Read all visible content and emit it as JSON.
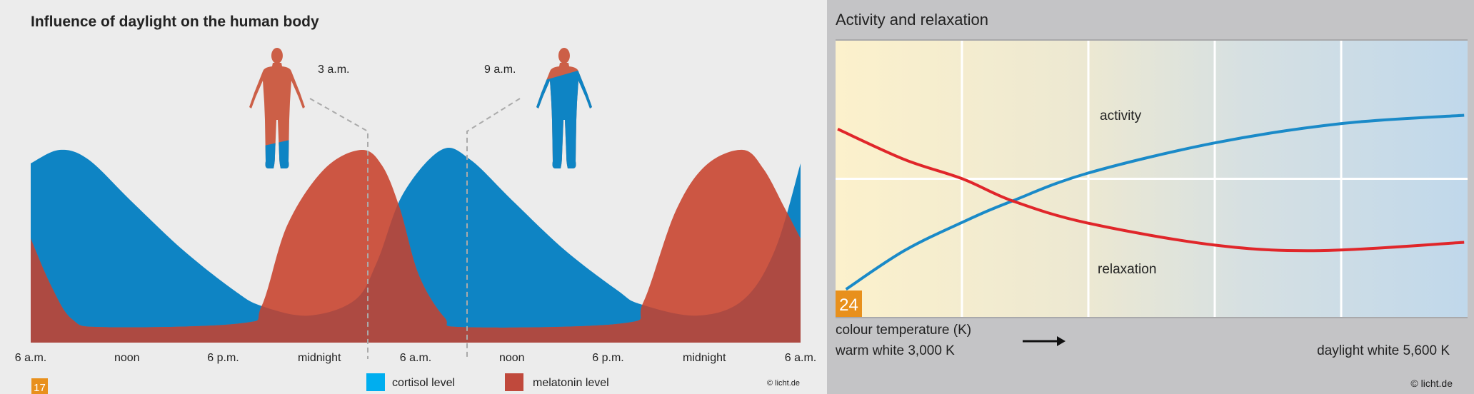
{
  "chart_data": [
    {
      "type": "area",
      "title": "Influence of daylight on the human body",
      "xlabel": "",
      "ylabel": "",
      "x_unit": "hours after 6 a.m.",
      "x_ticks": [
        "6 a.m.",
        "noon",
        "6 p.m.",
        "midnight",
        "6 a.m.",
        "noon",
        "6 p.m.",
        "midnight",
        "6 a.m."
      ],
      "xlim": [
        0,
        48
      ],
      "ylim": [
        0,
        100
      ],
      "grid": false,
      "legend_position": "bottom",
      "annotations": [
        {
          "label": "3 a.m.",
          "x": 21
        },
        {
          "label": "9 a.m.",
          "x": 27
        }
      ],
      "series": [
        {
          "name": "cortisol level",
          "color": "#0e84c4",
          "x": [
            0,
            1.8,
            3.6,
            6.2,
            9.5,
            12.7,
            14.4,
            17.3,
            20.2,
            21.6,
            23.2,
            25.6,
            27.4,
            30,
            33.3,
            36.6,
            38,
            41.5,
            44.4,
            46.4,
            48
          ],
          "y": [
            93,
            100,
            95,
            74,
            48,
            27,
            19,
            14,
            22,
            42,
            77,
            100,
            95,
            74,
            48,
            27,
            20,
            14,
            22,
            48,
            93
          ]
        },
        {
          "name": "melatonin level",
          "color": "#cc5643",
          "x": [
            0,
            1.3,
            2.6,
            4.6,
            13.1,
            14.4,
            16,
            18.3,
            20.6,
            21.9,
            23,
            24.2,
            25.8,
            27.1,
            36.9,
            38.2,
            40.2,
            42.1,
            44.4,
            45.7,
            47,
            48
          ],
          "y": [
            54,
            29,
            12,
            8,
            10,
            19,
            61,
            90,
            100,
            92,
            70,
            35,
            13,
            8,
            10,
            21,
            68,
            92,
            100,
            90,
            70,
            54
          ]
        }
      ],
      "badge": "17",
      "credit": "© licht.de"
    },
    {
      "type": "line",
      "title": "Activity and relaxation",
      "xlabel": "colour temperature (K)",
      "x_start_label": "warm white 3,000 K",
      "x_end_label": "daylight white 5,600 K",
      "xlim": [
        3000,
        5600
      ],
      "ylim": [
        0,
        100
      ],
      "grid": true,
      "series": [
        {
          "name": "activity",
          "color": "#1a8ac8",
          "x": [
            3043,
            3283,
            3540,
            3728,
            4036,
            4560,
            5081,
            5586
          ],
          "y": [
            10,
            24,
            35,
            42,
            52,
            63,
            70,
            73
          ]
        },
        {
          "name": "relaxation",
          "color": "#e0262a",
          "x": [
            3009,
            3283,
            3522,
            3728,
            4036,
            4560,
            4995,
            5586
          ],
          "y": [
            68,
            57,
            50,
            42,
            34,
            26,
            24,
            27
          ]
        }
      ],
      "badge": "24",
      "credit": "© licht.de"
    }
  ],
  "colors": {
    "overlap": "#ad4a42",
    "badge": "#e8901c",
    "right_bg": "#c4c4c6"
  }
}
